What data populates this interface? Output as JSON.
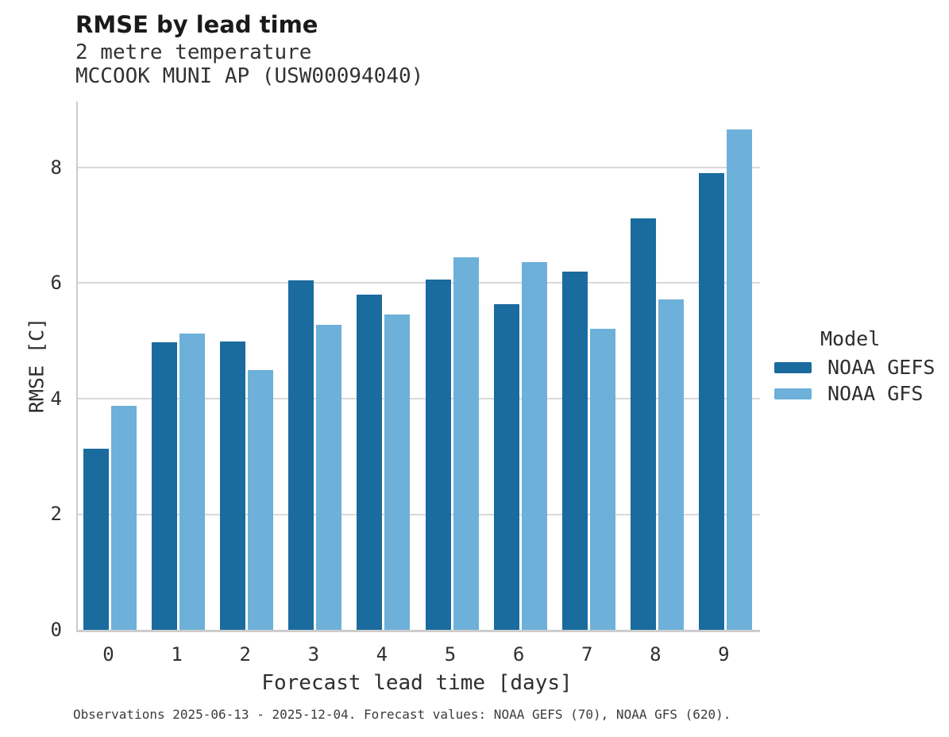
{
  "figure": {
    "title": "RMSE by lead time",
    "subtitle_variable": "2 metre temperature",
    "subtitle_station": "MCCOOK MUNI AP (USW00094040)",
    "caption": "Observations 2025-06-13 - 2025-12-04. Forecast values: NOAA GEFS (70), NOAA GFS (620)."
  },
  "legend": {
    "title": "Model",
    "entries": [
      {
        "label": "NOAA GEFS",
        "color": "#1a6b9e"
      },
      {
        "label": "NOAA GFS",
        "color": "#6db0d9"
      }
    ]
  },
  "chart_data": {
    "type": "bar",
    "title": "RMSE by lead time",
    "subtitle": [
      "2 metre temperature",
      "MCCOOK MUNI AP (USW00094040)"
    ],
    "xlabel": "Forecast lead time [days]",
    "ylabel": "RMSE [C]",
    "categories": [
      "0",
      "1",
      "2",
      "3",
      "4",
      "5",
      "6",
      "7",
      "8",
      "9"
    ],
    "series": [
      {
        "name": "NOAA GEFS",
        "color": "#1a6b9e",
        "values": [
          3.14,
          4.97,
          4.99,
          6.05,
          5.8,
          6.06,
          5.63,
          6.2,
          7.12,
          7.91
        ]
      },
      {
        "name": "NOAA GFS",
        "color": "#6db0d9",
        "values": [
          3.88,
          5.12,
          4.5,
          5.28,
          5.46,
          6.44,
          6.36,
          5.21,
          5.72,
          8.66
        ]
      }
    ],
    "ylim": [
      0,
      9.14
    ],
    "yticks": [
      0,
      2,
      4,
      6,
      8
    ],
    "grid": true,
    "legend_position": "right",
    "legend_title": "Model"
  },
  "colors": {
    "grid_line": "#d9d9d9",
    "spine": "#cccccc"
  }
}
